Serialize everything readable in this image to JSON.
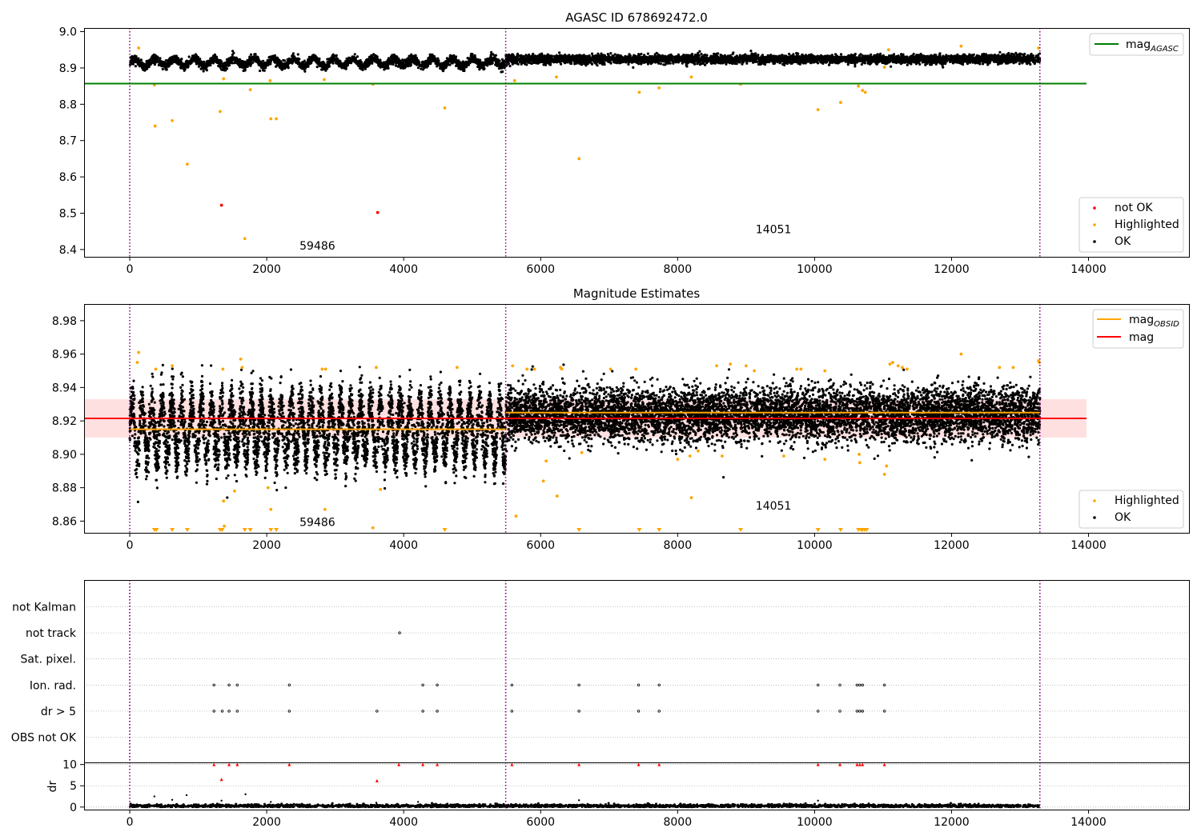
{
  "chart_data": [
    {
      "id": "agasc",
      "type": "scatter",
      "title": "AGASC ID 678692472.0",
      "xlim": [
        -667,
        15467
      ],
      "ylim": [
        8.38,
        9.01
      ],
      "x_ticks": [
        0,
        2000,
        4000,
        6000,
        8000,
        10000,
        12000,
        14000
      ],
      "y_ticks": [
        8.4,
        8.5,
        8.6,
        8.7,
        8.8,
        8.9,
        9.0
      ],
      "y_tick_format": 1,
      "grid": false,
      "obsid_boundaries": [
        0,
        5490,
        13290
      ],
      "obsid_labels": [
        {
          "text": "59486",
          "x": 2740,
          "y": 8.4
        },
        {
          "text": "14051",
          "x": 9400,
          "y": 8.445
        }
      ],
      "segments": [
        {
          "x_start": 0,
          "x_end": 5490,
          "center": 8.915,
          "amplitude": 0.01,
          "scatter": 0.006,
          "period": 290,
          "n": 2600
        },
        {
          "x_start": 5490,
          "x_end": 13290,
          "center": 8.924,
          "amplitude": 0.0,
          "scatter": 0.006,
          "period": 1,
          "n": 4200
        }
      ],
      "hlines": [
        {
          "name": "mag_AGASC",
          "y": 8.857,
          "x_start": -667,
          "x_end": 13970,
          "color": "#008000"
        }
      ],
      "series": [
        {
          "name": "not OK",
          "color": "#ff0000",
          "points": [
            [
              1340,
              8.522
            ],
            [
              3620,
              8.502
            ]
          ]
        },
        {
          "name": "Highlighted",
          "color": "#ffa500",
          "points": [
            [
              130,
              8.955
            ],
            [
              360,
              8.853
            ],
            [
              370,
              8.74
            ],
            [
              620,
              8.755
            ],
            [
              840,
              8.635
            ],
            [
              1320,
              8.78
            ],
            [
              1370,
              8.87
            ],
            [
              1680,
              8.43
            ],
            [
              1760,
              8.84
            ],
            [
              2050,
              8.865
            ],
            [
              2060,
              8.76
            ],
            [
              2140,
              8.76
            ],
            [
              2840,
              8.868
            ],
            [
              3550,
              8.855
            ],
            [
              4600,
              8.79
            ],
            [
              5620,
              8.865
            ],
            [
              6230,
              8.875
            ],
            [
              6560,
              8.65
            ],
            [
              7440,
              8.833
            ],
            [
              7730,
              8.845
            ],
            [
              8200,
              8.875
            ],
            [
              8920,
              8.855
            ],
            [
              10050,
              8.785
            ],
            [
              10380,
              8.805
            ],
            [
              10640,
              8.85
            ],
            [
              10700,
              8.838
            ],
            [
              10740,
              8.833
            ],
            [
              11020,
              8.902
            ],
            [
              11080,
              8.95
            ],
            [
              12140,
              8.96
            ],
            [
              13270,
              8.955
            ]
          ]
        }
      ],
      "legend_upper": {
        "label_main": "mag",
        "label_sub": "AGASC"
      },
      "legend_lower": [
        "not OK",
        "Highlighted",
        "OK"
      ]
    },
    {
      "id": "estimates",
      "type": "scatter",
      "title": "Magnitude Estimates",
      "xlim": [
        -667,
        15467
      ],
      "ylim": [
        8.853,
        8.99
      ],
      "x_ticks": [
        0,
        2000,
        4000,
        6000,
        8000,
        10000,
        12000,
        14000
      ],
      "y_ticks": [
        8.86,
        8.88,
        8.9,
        8.92,
        8.94,
        8.96,
        8.98
      ],
      "y_tick_format": 2,
      "grid": false,
      "obsid_boundaries": [
        0,
        5490,
        13290
      ],
      "obsid_labels": [
        {
          "text": "59486",
          "x": 2740,
          "y": 8.857
        },
        {
          "text": "14051",
          "x": 9400,
          "y": 8.867
        }
      ],
      "band": {
        "y0": 8.91,
        "y1": 8.933,
        "x_start": -667,
        "x_end": 13970,
        "color": "#ff0000",
        "opacity": 0.12
      },
      "segments": [
        {
          "x_start": 0,
          "x_end": 5490,
          "center": 8.915,
          "amplitude": 0.016,
          "scatter": 0.008,
          "period": 145,
          "n": 5200
        },
        {
          "x_start": 5490,
          "x_end": 13290,
          "center": 8.924,
          "amplitude": 0.0,
          "scatter": 0.008,
          "period": 1,
          "n": 7400
        }
      ],
      "hlines": [
        {
          "name": "mag_OBSID",
          "y": 8.915,
          "x_start": 0,
          "x_end": 5490,
          "color": "#ffa500"
        },
        {
          "name": "mag_OBSID",
          "y": 8.925,
          "x_start": 5490,
          "x_end": 13290,
          "color": "#ffa500"
        },
        {
          "name": "mag",
          "y": 8.9215,
          "x_start": -667,
          "x_end": 13970,
          "color": "#ff0000"
        }
      ],
      "series": [
        {
          "name": "Highlighted",
          "color": "#ffa500",
          "points": [
            [
              130,
              8.961
            ],
            [
              110,
              8.955
            ],
            [
              380,
              8.951
            ],
            [
              620,
              8.953
            ],
            [
              1370,
              8.872
            ],
            [
              1380,
              8.857
            ],
            [
              1360,
              8.951
            ],
            [
              1530,
              8.878
            ],
            [
              1620,
              8.957
            ],
            [
              1640,
              8.952
            ],
            [
              2020,
              8.88
            ],
            [
              2060,
              8.867
            ],
            [
              2810,
              8.951
            ],
            [
              2860,
              8.951
            ],
            [
              2850,
              8.867
            ],
            [
              3550,
              8.856
            ],
            [
              3600,
              8.952
            ],
            [
              3660,
              8.879
            ],
            [
              4780,
              8.952
            ],
            [
              5590,
              8.953
            ],
            [
              5640,
              8.863
            ],
            [
              5800,
              8.951
            ],
            [
              5910,
              8.951
            ],
            [
              6040,
              8.884
            ],
            [
              6080,
              8.896
            ],
            [
              6240,
              8.875
            ],
            [
              6290,
              8.952
            ],
            [
              6310,
              8.951
            ],
            [
              6600,
              8.901
            ],
            [
              7020,
              8.951
            ],
            [
              7390,
              8.951
            ],
            [
              8000,
              8.897
            ],
            [
              8180,
              8.899
            ],
            [
              8200,
              8.874
            ],
            [
              8300,
              8.902
            ],
            [
              8570,
              8.953
            ],
            [
              8650,
              8.899
            ],
            [
              8770,
              8.954
            ],
            [
              9000,
              8.953
            ],
            [
              9120,
              8.95
            ],
            [
              9550,
              8.899
            ],
            [
              9740,
              8.951
            ],
            [
              9800,
              8.951
            ],
            [
              10150,
              8.897
            ],
            [
              10150,
              8.95
            ],
            [
              10650,
              8.9
            ],
            [
              10660,
              8.895
            ],
            [
              11020,
              8.888
            ],
            [
              11050,
              8.893
            ],
            [
              11100,
              8.954
            ],
            [
              11140,
              8.955
            ],
            [
              11220,
              8.953
            ],
            [
              11280,
              8.952
            ],
            [
              11350,
              8.951
            ],
            [
              12140,
              8.96
            ],
            [
              12700,
              8.952
            ],
            [
              12900,
              8.952
            ],
            [
              13270,
              8.956
            ],
            [
              13280,
              8.955
            ]
          ]
        }
      ],
      "clipped_x": [
        360,
        390,
        620,
        840,
        1320,
        1350,
        1680,
        1760,
        2060,
        2140,
        4600,
        6560,
        7440,
        7730,
        8920,
        10050,
        10380,
        10640,
        10680,
        10700,
        10730,
        10760
      ],
      "legend_upper": [
        {
          "label_main": "mag",
          "label_sub": "OBSID",
          "color": "#ffa500"
        },
        {
          "label_main": "mag",
          "label_sub": "",
          "color": "#ff0000"
        }
      ],
      "legend_lower": [
        "Highlighted",
        "OK"
      ]
    },
    {
      "id": "flags",
      "type": "scatter",
      "xlim": [
        -667,
        15467
      ],
      "y_categories": [
        "not Kalman",
        "not track",
        "Sat. pixel.",
        "Ion. rad.",
        "dr > 5",
        "OBS not OK"
      ],
      "obsid_boundaries": [
        0,
        5490,
        13290
      ],
      "flag_points": {
        "not Kalman": [],
        "not track": [
          3940
        ],
        "Sat. pixel.": [],
        "Ion. rad.": [
          1230,
          1450,
          1570,
          2330,
          4280,
          4490,
          5580,
          6560,
          7430,
          7730,
          10050,
          10370,
          10620,
          10660,
          10700,
          11020
        ],
        "dr > 5": [
          1230,
          1350,
          1450,
          1570,
          2330,
          3610,
          4280,
          4490,
          5580,
          6560,
          7430,
          7730,
          10050,
          10370,
          10620,
          10660,
          10700,
          11020
        ],
        "OBS not OK": []
      }
    },
    {
      "id": "dr",
      "type": "scatter",
      "ylabel": "dr",
      "xlim": [
        -667,
        15467
      ],
      "ylim": [
        -0.6,
        10.5
      ],
      "x_ticks": [
        0,
        2000,
        4000,
        6000,
        8000,
        10000,
        12000,
        14000
      ],
      "y_ticks": [
        0,
        5,
        10
      ],
      "obsid_boundaries": [
        0,
        5490,
        13290
      ],
      "baseline": {
        "x_start": 0,
        "x_end": 13290,
        "center": 0.25,
        "scatter": 0.2,
        "n": 2600
      },
      "outliers": [
        [
          360,
          2.5
        ],
        [
          620,
          1.7
        ],
        [
          830,
          2.8
        ],
        [
          1340,
          1.5
        ],
        [
          1690,
          3.0
        ],
        [
          2060,
          1.2
        ],
        [
          3600,
          1.0
        ],
        [
          6560,
          1.6
        ],
        [
          10050,
          1.5
        ],
        [
          4210,
          1.2
        ]
      ],
      "red_points": [
        [
          1230,
          10
        ],
        [
          1340,
          6.5
        ],
        [
          1450,
          10
        ],
        [
          1570,
          10
        ],
        [
          2330,
          10
        ],
        [
          3610,
          6.2
        ],
        [
          3930,
          10
        ],
        [
          4280,
          10
        ],
        [
          4490,
          10
        ],
        [
          5580,
          10
        ],
        [
          6560,
          10
        ],
        [
          7430,
          10
        ],
        [
          7730,
          10
        ],
        [
          10050,
          10
        ],
        [
          10370,
          10
        ],
        [
          10620,
          10
        ],
        [
          10660,
          10
        ],
        [
          10700,
          10
        ],
        [
          11020,
          10
        ]
      ]
    }
  ]
}
